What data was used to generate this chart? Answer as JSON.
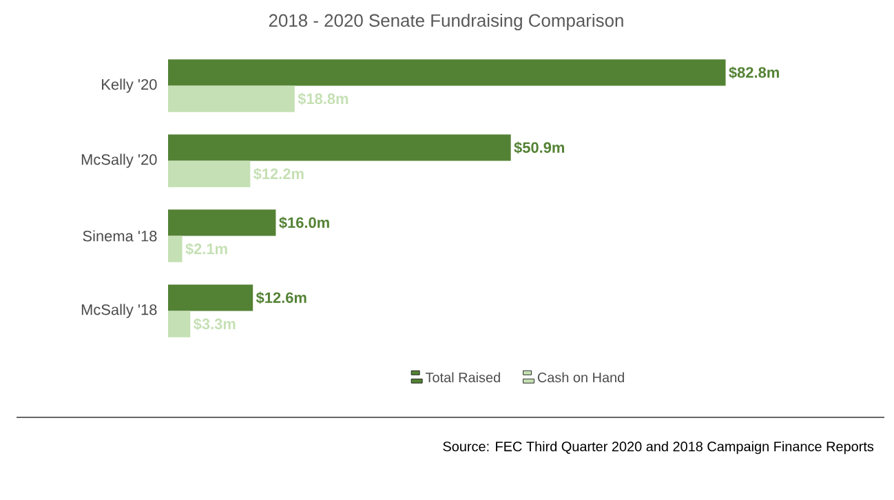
{
  "chart_data": {
    "type": "bar",
    "orientation": "horizontal",
    "title": "2018 - 2020 Senate Fundraising Comparison",
    "categories": [
      "Kelly '20",
      "McSally '20",
      "Sinema '18",
      "McSally '18"
    ],
    "series": [
      {
        "name": "Total Raised",
        "color": "#548235",
        "values": [
          82.8,
          50.9,
          16.0,
          12.6
        ],
        "value_labels": [
          "$82.8m",
          "$50.9m",
          "$16.0m",
          "$12.6m"
        ]
      },
      {
        "name": "Cash on Hand",
        "color": "#c5e0b4",
        "values": [
          18.8,
          12.2,
          2.1,
          3.3
        ],
        "value_labels": [
          "$18.8m",
          "$12.2m",
          "$2.1m",
          "$3.3m"
        ]
      }
    ],
    "legend": "bottom",
    "annotations": [
      "Source: FEC Third Quarter 2020 and 2018 Campaign Finance Reports"
    ]
  }
}
